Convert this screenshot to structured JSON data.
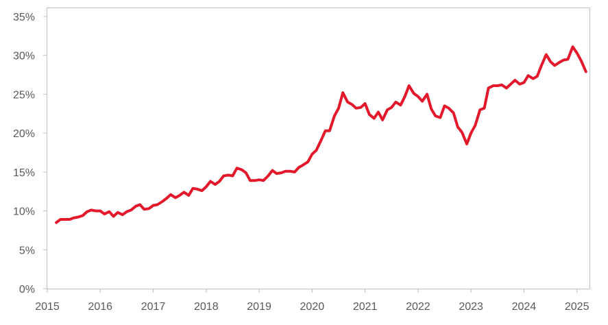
{
  "chart_data": {
    "type": "line",
    "title": "",
    "xlabel": "",
    "ylabel": "",
    "xlim": [
      2015,
      2025.25
    ],
    "ylim": [
      0,
      35
    ],
    "grid": false,
    "legend": "none",
    "x_ticks": [
      2015,
      2016,
      2017,
      2018,
      2019,
      2020,
      2021,
      2022,
      2023,
      2024,
      2025
    ],
    "x_tick_labels": [
      "2015",
      "2016",
      "2017",
      "2018",
      "2019",
      "2020",
      "2021",
      "2022",
      "2023",
      "2024",
      "2025"
    ],
    "y_ticks": [
      0,
      5,
      10,
      15,
      20,
      25,
      30,
      35
    ],
    "y_tick_labels": [
      "0%",
      "5%",
      "10%",
      "15%",
      "20%",
      "25%",
      "30%",
      "35%"
    ],
    "colors": {
      "series": "#e3192b",
      "axis": "#bfbfbf",
      "text": "#595959"
    },
    "series": [
      {
        "x": [
          2015.17,
          2015.25,
          2015.33,
          2015.42,
          2015.5,
          2015.58,
          2015.67,
          2015.75,
          2015.83,
          2015.92,
          2016.0,
          2016.08,
          2016.17,
          2016.25,
          2016.33,
          2016.42,
          2016.5,
          2016.58,
          2016.67,
          2016.75,
          2016.83,
          2016.92,
          2017.0,
          2017.08,
          2017.17,
          2017.25,
          2017.33,
          2017.42,
          2017.5,
          2017.58,
          2017.67,
          2017.75,
          2017.83,
          2017.92,
          2018.0,
          2018.08,
          2018.17,
          2018.25,
          2018.33,
          2018.42,
          2018.5,
          2018.58,
          2018.67,
          2018.75,
          2018.83,
          2018.92,
          2019.0,
          2019.08,
          2019.17,
          2019.25,
          2019.33,
          2019.42,
          2019.5,
          2019.58,
          2019.67,
          2019.75,
          2019.83,
          2019.92,
          2020.0,
          2020.08,
          2020.17,
          2020.25,
          2020.33,
          2020.42,
          2020.5,
          2020.58,
          2020.67,
          2020.75,
          2020.83,
          2020.92,
          2021.0,
          2021.08,
          2021.17,
          2021.25,
          2021.33,
          2021.42,
          2021.5,
          2021.58,
          2021.67,
          2021.75,
          2021.83,
          2021.92,
          2022.0,
          2022.08,
          2022.17,
          2022.25,
          2022.33,
          2022.42,
          2022.5,
          2022.58,
          2022.67,
          2022.75,
          2022.83,
          2022.92,
          2023.0,
          2023.08,
          2023.17,
          2023.25,
          2023.33,
          2023.42,
          2023.5,
          2023.58,
          2023.67,
          2023.75,
          2023.83,
          2023.92,
          2024.0,
          2024.08,
          2024.17,
          2024.25,
          2024.33,
          2024.42,
          2024.5,
          2024.58,
          2024.67,
          2024.75,
          2024.83,
          2024.92,
          2025.0,
          2025.08,
          2025.17
        ],
        "values": [
          8.5,
          8.9,
          8.9,
          8.9,
          9.1,
          9.2,
          9.4,
          9.9,
          10.1,
          10.0,
          10.0,
          9.6,
          9.9,
          9.3,
          9.8,
          9.5,
          9.9,
          10.1,
          10.6,
          10.8,
          10.2,
          10.3,
          10.7,
          10.8,
          11.2,
          11.6,
          12.1,
          11.7,
          12.0,
          12.4,
          12.0,
          12.9,
          12.8,
          12.6,
          13.1,
          13.8,
          13.4,
          13.8,
          14.5,
          14.6,
          14.5,
          15.5,
          15.3,
          14.9,
          13.9,
          13.9,
          14.0,
          13.9,
          14.5,
          15.2,
          14.8,
          14.9,
          15.1,
          15.1,
          15.0,
          15.6,
          15.9,
          16.3,
          17.3,
          17.8,
          19.1,
          20.3,
          20.3,
          22.2,
          23.2,
          25.2,
          24.0,
          23.7,
          23.2,
          23.3,
          23.8,
          22.4,
          21.9,
          22.7,
          21.7,
          23.0,
          23.3,
          24.0,
          23.6,
          24.7,
          26.1,
          25.1,
          24.7,
          24.1,
          25.0,
          23.1,
          22.2,
          22.0,
          23.5,
          23.2,
          22.6,
          20.8,
          20.1,
          18.6,
          20.0,
          21.0,
          23.0,
          23.2,
          25.8,
          26.1,
          26.1,
          26.2,
          25.8,
          26.3,
          26.8,
          26.3,
          26.5,
          27.4,
          27.0,
          27.3,
          28.7,
          30.1,
          29.2,
          28.7,
          29.1,
          29.4,
          29.5,
          31.1,
          30.3,
          29.3,
          27.9
        ]
      }
    ]
  }
}
